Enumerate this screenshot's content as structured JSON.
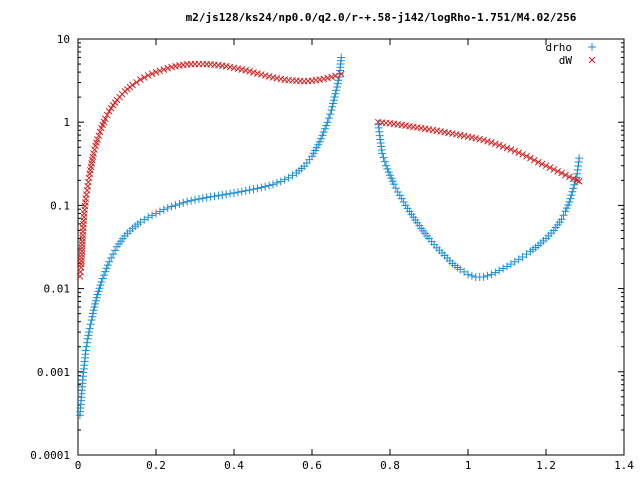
{
  "chart_data": {
    "type": "scatter",
    "title": "m2/js128/ks24/np0.0/q2.0/r-+.58-j142/logRho-1.751/M4.02/256",
    "xlabel": "",
    "ylabel": "",
    "xlim": [
      0,
      1.4
    ],
    "ylim": [
      0.0001,
      10
    ],
    "yscale": "log",
    "grid": false,
    "legend_position": "top-right",
    "x_ticks": [
      0,
      0.2,
      0.4,
      0.6,
      0.8,
      1,
      1.2,
      1.4
    ],
    "x_tick_labels": [
      "0",
      "0.2",
      "0.4",
      "0.6",
      "0.8",
      "1",
      "1.2",
      "1.4"
    ],
    "y_ticks": [
      0.0001,
      0.001,
      0.01,
      0.1,
      1,
      10
    ],
    "y_tick_labels": [
      "0.0001",
      "0.001",
      "0.01",
      "0.1",
      "1",
      "10"
    ],
    "series": [
      {
        "name": "drho",
        "marker": "plus",
        "color": "#1f8fd6",
        "segments": [
          {
            "x": [
              0.005,
              0.008,
              0.012,
              0.016,
              0.02,
              0.025,
              0.03,
              0.035,
              0.04,
              0.05,
              0.06,
              0.07,
              0.08,
              0.09,
              0.1,
              0.12,
              0.14,
              0.16,
              0.18,
              0.2,
              0.22,
              0.24,
              0.26,
              0.28,
              0.3,
              0.32,
              0.34,
              0.36,
              0.38,
              0.4,
              0.42,
              0.44,
              0.46,
              0.48,
              0.5,
              0.52,
              0.54,
              0.56,
              0.58,
              0.6,
              0.62,
              0.64,
              0.65,
              0.66,
              0.67,
              0.675
            ],
            "y": [
              0.0003,
              0.00045,
              0.0008,
              0.0012,
              0.0018,
              0.0025,
              0.0033,
              0.0042,
              0.0055,
              0.0085,
              0.012,
              0.016,
              0.021,
              0.026,
              0.032,
              0.043,
              0.053,
              0.063,
              0.072,
              0.08,
              0.089,
              0.097,
              0.104,
              0.111,
              0.117,
              0.122,
              0.127,
              0.131,
              0.136,
              0.141,
              0.147,
              0.153,
              0.16,
              0.168,
              0.179,
              0.194,
              0.215,
              0.245,
              0.295,
              0.39,
              0.58,
              1.0,
              1.4,
              2.2,
              3.5,
              6.0
            ]
          },
          {
            "x": [
              0.77,
              0.775,
              0.78,
              0.79,
              0.8,
              0.81,
              0.82,
              0.84,
              0.86,
              0.88,
              0.9,
              0.92,
              0.94,
              0.96,
              0.98,
              1.0,
              1.02,
              1.04,
              1.06,
              1.08,
              1.1,
              1.12,
              1.14,
              1.16,
              1.18,
              1.2,
              1.22,
              1.24,
              1.25,
              1.26,
              1.27,
              1.28,
              1.285
            ],
            "y": [
              0.95,
              0.62,
              0.42,
              0.3,
              0.23,
              0.18,
              0.145,
              0.1,
              0.072,
              0.053,
              0.04,
              0.031,
              0.025,
              0.02,
              0.017,
              0.0148,
              0.0138,
              0.0138,
              0.0148,
              0.0165,
              0.0185,
              0.021,
              0.024,
              0.028,
              0.033,
              0.04,
              0.05,
              0.068,
              0.085,
              0.11,
              0.16,
              0.24,
              0.37
            ]
          }
        ]
      },
      {
        "name": "dW",
        "marker": "cross",
        "color": "#d62020",
        "segments": [
          {
            "x": [
              0.005,
              0.008,
              0.012,
              0.016,
              0.02,
              0.025,
              0.03,
              0.035,
              0.04,
              0.045,
              0.05,
              0.06,
              0.07,
              0.08,
              0.09,
              0.1,
              0.12,
              0.14,
              0.16,
              0.18,
              0.2,
              0.22,
              0.24,
              0.26,
              0.28,
              0.3,
              0.32,
              0.34,
              0.36,
              0.38,
              0.4,
              0.42,
              0.44,
              0.46,
              0.48,
              0.5,
              0.52,
              0.54,
              0.56,
              0.58,
              0.6,
              0.62,
              0.64,
              0.66,
              0.675
            ],
            "y": [
              0.014,
              0.018,
              0.044,
              0.08,
              0.12,
              0.17,
              0.24,
              0.32,
              0.42,
              0.52,
              0.62,
              0.85,
              1.1,
              1.35,
              1.6,
              1.85,
              2.35,
              2.8,
              3.25,
              3.65,
              4.0,
              4.3,
              4.6,
              4.8,
              4.95,
              5.0,
              5.0,
              4.95,
              4.85,
              4.7,
              4.5,
              4.3,
              4.1,
              3.85,
              3.65,
              3.45,
              3.3,
              3.2,
              3.15,
              3.1,
              3.15,
              3.25,
              3.4,
              3.6,
              3.8
            ]
          },
          {
            "x": [
              0.77,
              0.8,
              0.82,
              0.84,
              0.86,
              0.88,
              0.9,
              0.92,
              0.94,
              0.96,
              0.98,
              1.0,
              1.02,
              1.04,
              1.06,
              1.08,
              1.1,
              1.12,
              1.14,
              1.16,
              1.18,
              1.2,
              1.22,
              1.24,
              1.26,
              1.27,
              1.28,
              1.285
            ],
            "y": [
              1.0,
              0.97,
              0.94,
              0.91,
              0.88,
              0.85,
              0.82,
              0.79,
              0.76,
              0.73,
              0.7,
              0.67,
              0.64,
              0.61,
              0.57,
              0.53,
              0.49,
              0.45,
              0.41,
              0.37,
              0.33,
              0.3,
              0.27,
              0.245,
              0.22,
              0.21,
              0.2,
              0.195
            ]
          }
        ]
      }
    ]
  }
}
